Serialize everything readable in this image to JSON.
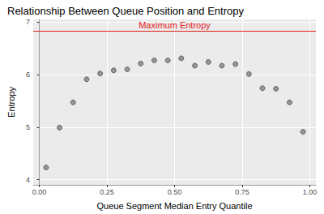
{
  "chart_data": {
    "type": "scatter",
    "title": "Relationship Between Queue Position and Entropy",
    "x_label": "Queue Segment Median Entry Quantile",
    "y_label": "Entropy",
    "x": [
      0.025,
      0.075,
      0.125,
      0.175,
      0.225,
      0.275,
      0.325,
      0.375,
      0.425,
      0.475,
      0.525,
      0.575,
      0.625,
      0.675,
      0.725,
      0.775,
      0.825,
      0.875,
      0.925,
      0.975
    ],
    "values": [
      4.23,
      4.99,
      5.47,
      5.91,
      6.02,
      6.08,
      6.1,
      6.21,
      6.27,
      6.27,
      6.31,
      6.17,
      6.24,
      6.17,
      6.2,
      6.01,
      5.74,
      5.73,
      5.47,
      4.91
    ],
    "color": "#808080",
    "marker": "circle",
    "xlim": [
      -0.0225,
      1.0225
    ],
    "xticks": [
      {
        "value": 0,
        "label": "0.00"
      },
      0.25,
      {
        "value": 0.5,
        "label": "0.50"
      },
      0.75,
      {
        "value": 1,
        "label": "1.00"
      }
    ],
    "ylim": [
      3.9,
      7.05
    ],
    "yticks": [
      4,
      5,
      6,
      7
    ],
    "grid": true,
    "reference_line": {
      "value": 6.83,
      "label": "Maximum Entropy",
      "color": "#e3201b"
    }
  }
}
